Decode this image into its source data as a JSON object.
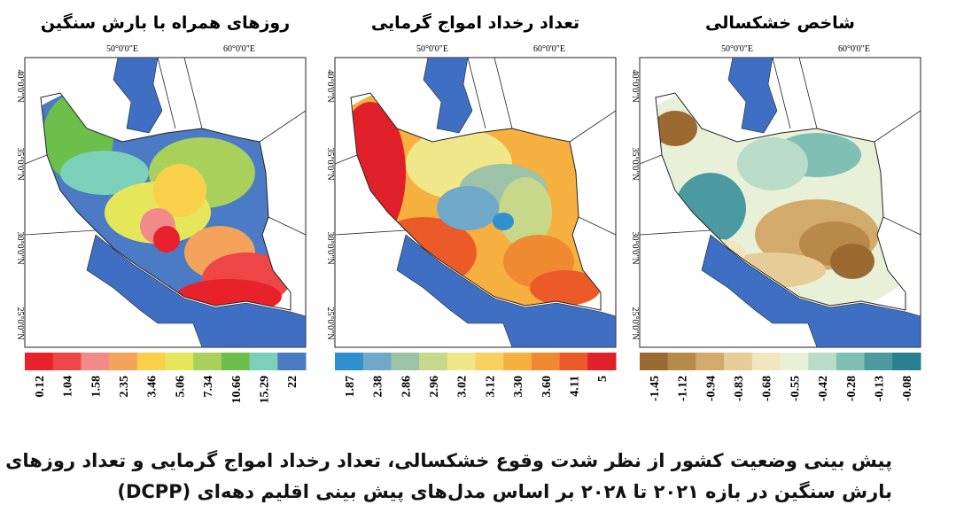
{
  "maps": [
    {
      "title": "روزهای همراه با بارش سنگین",
      "lon_labels": [
        "50°0'0\"E",
        "60°0'0\"E"
      ],
      "lat_labels": [
        "40°0'0\"N",
        "35°0'0\"N",
        "30°0'0\"N",
        "25°0'0\"N"
      ],
      "legend": {
        "colors": [
          "#e8212b",
          "#ee4646",
          "#f28a8a",
          "#f5a35a",
          "#f9d04a",
          "#e6e65a",
          "#a8d05a",
          "#6cbf4a",
          "#7ccfb8",
          "#4a7bc4"
        ],
        "labels": [
          "0.12",
          "1.04",
          "1.58",
          "2.35",
          "3.46",
          "5.06",
          "7.34",
          "10.66",
          "15.29",
          "22"
        ]
      }
    },
    {
      "title": "تعداد رخداد امواج گرمایی",
      "lon_labels": [
        "50°0'0\"E",
        "60°0'0\"E"
      ],
      "lat_labels": [
        "40°0'0\"N",
        "35°0'0\"N",
        "30°0'0\"N",
        "25°0'0\"N"
      ],
      "legend": {
        "colors": [
          "#2f8fcf",
          "#6fa8c8",
          "#9cc2a8",
          "#c8d88a",
          "#f0e68a",
          "#f7d060",
          "#f5b040",
          "#f08a30",
          "#ec5a28",
          "#e0202a"
        ],
        "labels": [
          "1.87",
          "2.38",
          "2.86",
          "2.96",
          "3.02",
          "3.12",
          "3.30",
          "3.60",
          "4.11",
          "5"
        ]
      }
    },
    {
      "title": "شاخص خشکسالی",
      "lon_labels": [
        "50°0'0\"E",
        "60°0'0\"E"
      ],
      "lat_labels": [
        "40°0'0\"N",
        "35°0'0\"N",
        "30°0'0\"N",
        "25°0'0\"N"
      ],
      "legend": {
        "colors": [
          "#9b6a30",
          "#b88a4a",
          "#d2aa6a",
          "#e6cc96",
          "#f2e6c0",
          "#e8f0d8",
          "#b8dcc8",
          "#80c0b4",
          "#4a9aa0",
          "#2a8090"
        ],
        "labels": [
          "-1.45",
          "-1.12",
          "-0.94",
          "-0.83",
          "-0.68",
          "-0.55",
          "-0.42",
          "-0.28",
          "-0.13",
          "-0.08"
        ]
      }
    }
  ],
  "caption": {
    "lines": [
      "پیش بینی وضعیت کشور از نظر شدت وقوع خشکسالی، تعداد رخداد امواج گرمایی و تعداد روزهای",
      "بارش سنگین در بازه ۲۰۲۱ تا ۲۰۲۸ بر اساس مدل‌های پیش بینی اقلیم دهه‌ای (DCPP)"
    ]
  }
}
